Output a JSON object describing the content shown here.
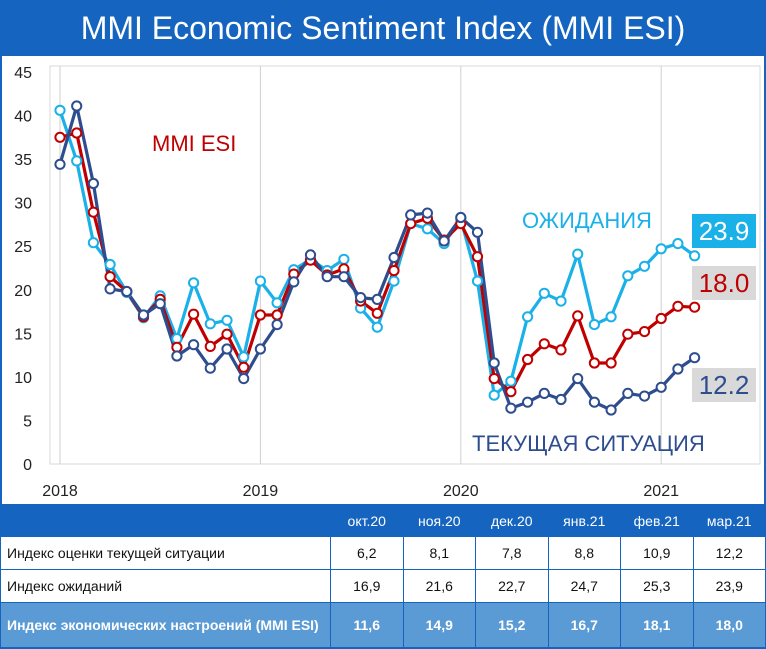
{
  "title": "MMI Economic Sentiment Index (MMI ESI)",
  "chart_data": {
    "type": "line",
    "title": "",
    "xlabel": "",
    "ylabel": "",
    "ylim": [
      0,
      45
    ],
    "yticks": [
      "0",
      "5",
      "10",
      "15",
      "20",
      "25",
      "30",
      "35",
      "40",
      "45"
    ],
    "xticks": [
      "2018",
      "2019",
      "2020",
      "2021"
    ],
    "grid": "vertical lines at year starts",
    "x": [
      "2018-01",
      "2018-02",
      "2018-03",
      "2018-04",
      "2018-05",
      "2018-06",
      "2018-07",
      "2018-08",
      "2018-09",
      "2018-10",
      "2018-11",
      "2018-12",
      "2019-01",
      "2019-02",
      "2019-03",
      "2019-04",
      "2019-05",
      "2019-06",
      "2019-07",
      "2019-08",
      "2019-09",
      "2019-10",
      "2019-11",
      "2019-12",
      "2020-01",
      "2020-02",
      "2020-03",
      "2020-04",
      "2020-05",
      "2020-06",
      "2020-07",
      "2020-08",
      "2020-09",
      "2020-10",
      "2020-11",
      "2020-12",
      "2021-01",
      "2021-02",
      "2021-03"
    ],
    "series": [
      {
        "name": "ОЖИДАНИЯ",
        "color": "#1ab0e8",
        "end_label": "23.9",
        "values": [
          40.6,
          34.8,
          25.4,
          22.9,
          19.7,
          16.8,
          19.3,
          14.4,
          20.8,
          16.1,
          16.5,
          12.3,
          21.0,
          18.5,
          22.3,
          23.5,
          22.2,
          23.5,
          17.9,
          15.7,
          21.0,
          27.6,
          27.0,
          25.3,
          28.1,
          21.0,
          7.9,
          9.5,
          16.9,
          19.6,
          18.7,
          24.1,
          16.0,
          16.9,
          21.6,
          22.7,
          24.7,
          25.3,
          23.9
        ]
      },
      {
        "name": "MMI ESI",
        "color": "#c00000",
        "end_label": "18.0",
        "values": [
          37.5,
          38.0,
          28.9,
          21.5,
          19.8,
          16.9,
          18.9,
          13.4,
          17.2,
          13.5,
          14.9,
          11.1,
          17.1,
          17.1,
          21.8,
          23.4,
          21.7,
          22.4,
          18.7,
          17.3,
          22.2,
          27.6,
          28.2,
          25.7,
          27.6,
          23.8,
          9.8,
          8.3,
          12.0,
          13.8,
          13.1,
          17.0,
          11.6,
          11.6,
          14.9,
          15.2,
          16.7,
          18.1,
          18.0
        ]
      },
      {
        "name": "ТЕКУЩАЯ СИТУАЦИЯ",
        "color": "#2e4d8f",
        "end_label": "12.2",
        "values": [
          34.4,
          41.1,
          32.2,
          20.1,
          19.8,
          17.1,
          18.4,
          12.4,
          13.7,
          11.0,
          13.2,
          9.8,
          13.2,
          16.0,
          20.9,
          24.0,
          21.5,
          21.5,
          19.1,
          18.9,
          23.7,
          28.6,
          28.8,
          25.6,
          28.3,
          26.6,
          11.6,
          6.4,
          7.1,
          8.1,
          7.4,
          9.8,
          7.1,
          6.2,
          8.1,
          7.8,
          8.8,
          10.9,
          12.2
        ]
      }
    ],
    "legend": "in-chart labels"
  },
  "table": {
    "columns": [
      "окт.20",
      "ноя.20",
      "дек.20",
      "янв.21",
      "фев.21",
      "мар.21"
    ],
    "rows": [
      {
        "label": "Индекс оценки текущей ситуации",
        "values": [
          "6,2",
          "8,1",
          "7,8",
          "8,8",
          "10,9",
          "12,2"
        ]
      },
      {
        "label": "Индекс ожиданий",
        "values": [
          "16,9",
          "21,6",
          "22,7",
          "24,7",
          "25,3",
          "23,9"
        ]
      },
      {
        "label": "Индекс экономических настроений (MMI ESI)",
        "values": [
          "11,6",
          "14,9",
          "15,2",
          "16,7",
          "18,1",
          "18,0"
        ]
      }
    ]
  }
}
